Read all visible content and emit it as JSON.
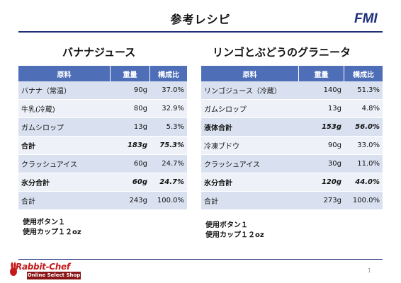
{
  "page": {
    "title": "参考レシピ",
    "logo": "FMI",
    "page_number": "1"
  },
  "left": {
    "title": "バナナジュース",
    "headers": [
      "原料",
      "重量",
      "構成比"
    ],
    "rows": [
      {
        "name": "バナナ（常温）",
        "weight": "90g",
        "ratio": "37.0%",
        "bold": false
      },
      {
        "name": "牛乳(冷蔵)",
        "weight": "80g",
        "ratio": "32.9%",
        "bold": false
      },
      {
        "name": "ガムシロップ",
        "weight": "13g",
        "ratio": "5.3%",
        "bold": false
      },
      {
        "name": "合計",
        "weight": "183g",
        "ratio": "75.3%",
        "bold": true
      },
      {
        "name": "クラッシュアイス",
        "weight": "60g",
        "ratio": "24.7%",
        "bold": false
      },
      {
        "name": "氷分合計",
        "weight": "60g",
        "ratio": "24.7%",
        "bold": true
      },
      {
        "name": "合計",
        "weight": "243g",
        "ratio": "100.0%",
        "bold": false
      }
    ],
    "notes": [
      "使用ボタン１",
      "使用カップ１２oz"
    ]
  },
  "right": {
    "title": "リンゴとぶどうのグラニータ",
    "headers": [
      "原料",
      "重量",
      "構成比"
    ],
    "rows": [
      {
        "name": "リンゴジュース（冷蔵）",
        "weight": "140g",
        "ratio": "51.3%",
        "bold": false
      },
      {
        "name": "ガムシロップ",
        "weight": "13g",
        "ratio": "4.8%",
        "bold": false
      },
      {
        "name": "液体合計",
        "weight": "153g",
        "ratio": "56.0%",
        "bold": true
      },
      {
        "name": "冷凍ブドウ",
        "weight": "90g",
        "ratio": "33.0%",
        "bold": false
      },
      {
        "name": "クラッシュアイス",
        "weight": "30g",
        "ratio": "11.0%",
        "bold": false
      },
      {
        "name": "氷分合計",
        "weight": "120g",
        "ratio": "44.0%",
        "bold": true
      },
      {
        "name": "合計",
        "weight": "273g",
        "ratio": "100.0%",
        "bold": false
      }
    ],
    "notes": [
      "使用ボタン１",
      "使用カップ１２oz"
    ]
  },
  "footer": {
    "brand": "Rabbit-Chef",
    "tagline": "Online Select Shop"
  },
  "colors": {
    "header_bg": "#4e6fb8",
    "row_odd": "#d9e1f0",
    "row_even": "#eef1f8",
    "rule": "#1f2f7a",
    "brand_red": "#c41a1a"
  }
}
